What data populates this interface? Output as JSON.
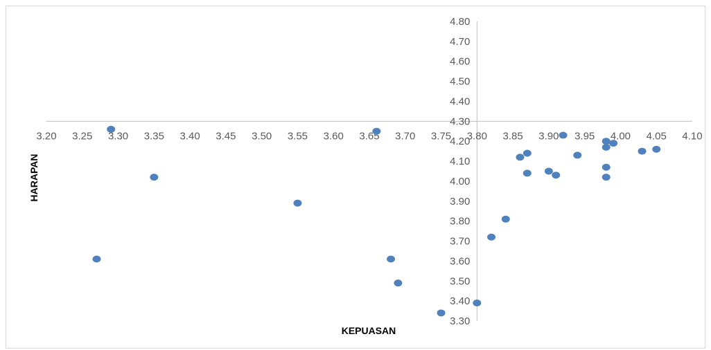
{
  "chart_data": {
    "type": "scatter",
    "xlabel": "KEPUASAN",
    "ylabel": "HARAPAN",
    "xlim": [
      3.2,
      4.1
    ],
    "ylim": [
      3.3,
      4.8
    ],
    "x_ticks": [
      "3.20",
      "3.25",
      "3.30",
      "3.35",
      "3.40",
      "3.45",
      "3.50",
      "3.55",
      "3.60",
      "3.65",
      "3.70",
      "3.75",
      "3.80",
      "3.85",
      "3.90",
      "3.95",
      "4.00",
      "4.05",
      "4.10"
    ],
    "y_ticks": [
      "3.30",
      "3.40",
      "3.50",
      "3.60",
      "3.70",
      "3.80",
      "3.90",
      "4.00",
      "4.10",
      "4.20",
      "4.30",
      "4.40",
      "4.50",
      "4.60",
      "4.70",
      "4.80"
    ],
    "x_axis_crosses_y_at": 4.3,
    "y_axis_crosses_x_at": 3.8,
    "marker_color": "#4F81BD",
    "points": [
      {
        "x": 3.29,
        "y": 4.26
      },
      {
        "x": 3.66,
        "y": 4.25
      },
      {
        "x": 3.35,
        "y": 4.02
      },
      {
        "x": 3.55,
        "y": 3.89
      },
      {
        "x": 3.27,
        "y": 3.61
      },
      {
        "x": 3.68,
        "y": 3.61
      },
      {
        "x": 3.69,
        "y": 3.49
      },
      {
        "x": 3.75,
        "y": 3.34
      },
      {
        "x": 3.8,
        "y": 3.39
      },
      {
        "x": 3.82,
        "y": 3.72
      },
      {
        "x": 3.84,
        "y": 3.81
      },
      {
        "x": 3.86,
        "y": 4.12
      },
      {
        "x": 3.87,
        "y": 4.14
      },
      {
        "x": 3.87,
        "y": 4.04
      },
      {
        "x": 3.9,
        "y": 4.05
      },
      {
        "x": 3.91,
        "y": 4.03
      },
      {
        "x": 3.92,
        "y": 4.23
      },
      {
        "x": 3.94,
        "y": 4.13
      },
      {
        "x": 3.98,
        "y": 4.2
      },
      {
        "x": 3.98,
        "y": 4.17
      },
      {
        "x": 3.99,
        "y": 4.19
      },
      {
        "x": 3.98,
        "y": 4.07
      },
      {
        "x": 3.98,
        "y": 4.02
      },
      {
        "x": 4.03,
        "y": 4.15
      },
      {
        "x": 4.05,
        "y": 4.16
      }
    ]
  }
}
